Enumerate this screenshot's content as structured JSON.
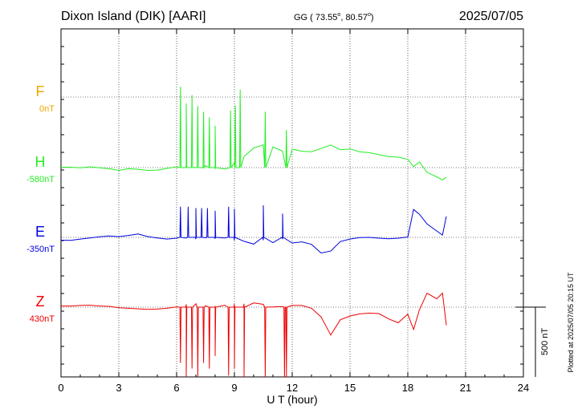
{
  "header": {
    "station": "Dixon Island (DIK)  [AARI]",
    "coords_prefix": "GG ( 73.55",
    "coords_mid": ",  80.57",
    "coords_suffix": ")",
    "date": "2025/07/05"
  },
  "plotted_note": "Plotted at 2025/07/05 20:15 UT",
  "chart_data": {
    "type": "line",
    "xlabel": "U T (hour)",
    "xlim": [
      0,
      24
    ],
    "xticks": [
      0,
      3,
      6,
      9,
      12,
      15,
      18,
      21,
      24
    ],
    "scale_label": "500 nT",
    "scale_nT": 500,
    "series": [
      {
        "name": "F",
        "offset_label": "0nT",
        "color": "#f0a800",
        "baseline_nT": 0,
        "points": []
      },
      {
        "name": "H",
        "offset_label": "-580nT",
        "color": "#22ee22",
        "baseline_nT": -580,
        "points": [
          [
            0,
            3
          ],
          [
            0.5,
            3
          ],
          [
            1,
            -2
          ],
          [
            1.5,
            6
          ],
          [
            2,
            -2
          ],
          [
            2.5,
            -8
          ],
          [
            3,
            -20
          ],
          [
            3.5,
            -8
          ],
          [
            4,
            -12
          ],
          [
            4.5,
            -20
          ],
          [
            5,
            -18
          ],
          [
            5.5,
            -6
          ],
          [
            6,
            6
          ],
          [
            6.5,
            14
          ],
          [
            7,
            2
          ],
          [
            7.5,
            14
          ],
          [
            8,
            -6
          ],
          [
            8.5,
            -10
          ],
          [
            9,
            34
          ],
          [
            9.5,
            80
          ],
          [
            10,
            140
          ],
          [
            10.5,
            164
          ],
          [
            11,
            148
          ],
          [
            11.5,
            118
          ],
          [
            12,
            132
          ],
          [
            12.5,
            117
          ],
          [
            13,
            114
          ],
          [
            13.5,
            137
          ],
          [
            14,
            162
          ],
          [
            14.5,
            128
          ],
          [
            15,
            134
          ],
          [
            15.5,
            114
          ],
          [
            16,
            107
          ],
          [
            16.5,
            93
          ],
          [
            17,
            78
          ],
          [
            17.5,
            75
          ],
          [
            18,
            59
          ],
          [
            18.3,
            7
          ],
          [
            18.6,
            40
          ],
          [
            19,
            -34
          ],
          [
            19.5,
            -66
          ],
          [
            19.8,
            -88
          ],
          [
            20,
            -70
          ]
        ],
        "spikes": [
          [
            6.2,
            580
          ],
          [
            6.5,
            460
          ],
          [
            6.8,
            520
          ],
          [
            7.1,
            440
          ],
          [
            7.4,
            400
          ],
          [
            7.7,
            360
          ],
          [
            8.0,
            300
          ],
          [
            8.8,
            410
          ],
          [
            9.05,
            445
          ],
          [
            9.3,
            560
          ],
          [
            10.6,
            400
          ],
          [
            11.7,
            270
          ]
        ]
      },
      {
        "name": "E",
        "offset_label": "-350nT",
        "color": "#0000dd",
        "baseline_nT": -350,
        "points": [
          [
            0,
            -20
          ],
          [
            0.5,
            -22
          ],
          [
            1,
            -12
          ],
          [
            1.5,
            -4
          ],
          [
            2,
            4
          ],
          [
            2.5,
            10
          ],
          [
            3,
            5
          ],
          [
            3.5,
            14
          ],
          [
            4,
            24
          ],
          [
            4.5,
            6
          ],
          [
            5,
            -4
          ],
          [
            5.5,
            -12
          ],
          [
            6,
            -6
          ],
          [
            6.5,
            -5
          ],
          [
            7,
            -12
          ],
          [
            7.5,
            -3
          ],
          [
            8,
            -10
          ],
          [
            8.5,
            -4
          ],
          [
            9,
            -20
          ],
          [
            9.5,
            -28
          ],
          [
            10,
            -48
          ],
          [
            10.5,
            -20
          ],
          [
            11,
            -38
          ],
          [
            11.5,
            -12
          ],
          [
            12,
            -40
          ],
          [
            12.5,
            -32
          ],
          [
            13,
            -50
          ],
          [
            13.5,
            -112
          ],
          [
            14,
            -98
          ],
          [
            14.5,
            -30
          ],
          [
            15,
            -12
          ],
          [
            15.5,
            -1
          ],
          [
            16,
            0
          ],
          [
            16.5,
            -6
          ],
          [
            17,
            -10
          ],
          [
            17.5,
            -6
          ],
          [
            18,
            3
          ],
          [
            18.3,
            200
          ],
          [
            18.6,
            166
          ],
          [
            19,
            96
          ],
          [
            19.5,
            46
          ],
          [
            19.8,
            16
          ],
          [
            20,
            150
          ]
        ],
        "spikes": [
          [
            6.2,
            220
          ],
          [
            6.6,
            220
          ],
          [
            7.0,
            210
          ],
          [
            7.3,
            210
          ],
          [
            7.6,
            210
          ],
          [
            8.0,
            190
          ],
          [
            8.7,
            220
          ],
          [
            9.0,
            205
          ],
          [
            10.5,
            230
          ],
          [
            11.5,
            170
          ]
        ]
      },
      {
        "name": "Z",
        "offset_label": "430nT",
        "color": "#ee0000",
        "baseline_nT": 430,
        "points": [
          [
            0,
            8
          ],
          [
            0.5,
            8
          ],
          [
            1,
            12
          ],
          [
            1.5,
            14
          ],
          [
            2,
            8
          ],
          [
            2.5,
            6
          ],
          [
            3,
            -4
          ],
          [
            3.5,
            -8
          ],
          [
            4,
            -12
          ],
          [
            4.5,
            -16
          ],
          [
            5,
            -14
          ],
          [
            5.5,
            -8
          ],
          [
            6,
            2
          ],
          [
            6.5,
            20
          ],
          [
            7,
            24
          ],
          [
            7.5,
            10
          ],
          [
            8,
            4
          ],
          [
            8.5,
            14
          ],
          [
            9,
            22
          ],
          [
            9.5,
            24
          ],
          [
            10,
            30
          ],
          [
            10.5,
            20
          ],
          [
            11,
            2
          ],
          [
            11.5,
            4
          ],
          [
            12,
            12
          ],
          [
            12.5,
            12
          ],
          [
            13,
            -8
          ],
          [
            13.5,
            -70
          ],
          [
            14,
            -200
          ],
          [
            14.5,
            -90
          ],
          [
            15,
            -64
          ],
          [
            15.5,
            -48
          ],
          [
            16,
            -43
          ],
          [
            16.5,
            -46
          ],
          [
            17,
            -84
          ],
          [
            17.5,
            -112
          ],
          [
            18,
            -50
          ],
          [
            18.3,
            -160
          ],
          [
            18.6,
            -20
          ],
          [
            19,
            100
          ],
          [
            19.5,
            60
          ],
          [
            19.8,
            100
          ],
          [
            20,
            -130
          ]
        ],
        "spikes": [
          [
            6.2,
            -400
          ],
          [
            6.5,
            -520
          ],
          [
            6.8,
            -440
          ],
          [
            7.1,
            -500
          ],
          [
            7.4,
            -400
          ],
          [
            7.7,
            -440
          ],
          [
            8.0,
            -350
          ],
          [
            8.7,
            -490
          ],
          [
            9.0,
            -440
          ],
          [
            9.5,
            -530
          ],
          [
            10.6,
            -560
          ],
          [
            11.6,
            -600
          ],
          [
            11.7,
            -570
          ]
        ]
      }
    ]
  }
}
